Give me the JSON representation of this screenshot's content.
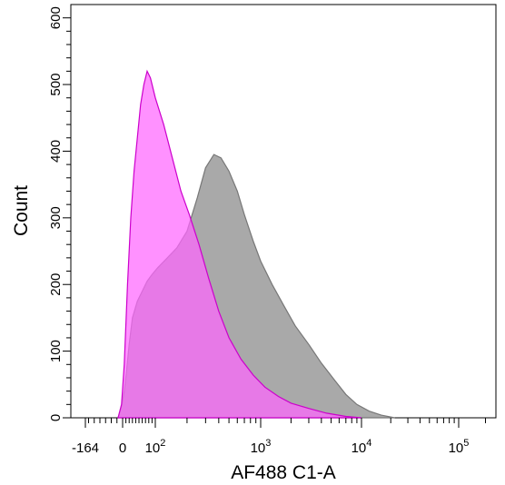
{
  "chart_data": {
    "type": "area",
    "title": "",
    "xlabel": "AF488 C1-A",
    "ylabel": "Count",
    "xscale": "biexponential",
    "xlim": [
      -164,
      262144
    ],
    "ylim": [
      0,
      620
    ],
    "x_ticks": [
      {
        "value": -164,
        "label": "-164"
      },
      {
        "value": 0,
        "label": "0"
      },
      {
        "value": 100,
        "base": "10",
        "exp": "2"
      },
      {
        "value": 1000,
        "base": "10",
        "exp": "3"
      },
      {
        "value": 10000,
        "base": "10",
        "exp": "4"
      },
      {
        "value": 100000,
        "base": "10",
        "exp": "5"
      }
    ],
    "y_ticks": [
      0,
      100,
      200,
      300,
      400,
      500,
      600
    ],
    "grid": false,
    "series": [
      {
        "color": "#a9a9a9",
        "outline": "#777777",
        "points": [
          [
            -20,
            0
          ],
          [
            -5,
            18
          ],
          [
            5,
            40
          ],
          [
            12,
            70
          ],
          [
            20,
            110
          ],
          [
            30,
            150
          ],
          [
            45,
            175
          ],
          [
            60,
            190
          ],
          [
            75,
            205
          ],
          [
            90,
            215
          ],
          [
            105,
            225
          ],
          [
            130,
            240
          ],
          [
            160,
            255
          ],
          [
            200,
            280
          ],
          [
            250,
            330
          ],
          [
            300,
            375
          ],
          [
            360,
            395
          ],
          [
            420,
            390
          ],
          [
            500,
            370
          ],
          [
            600,
            340
          ],
          [
            700,
            305
          ],
          [
            850,
            265
          ],
          [
            1000,
            235
          ],
          [
            1300,
            200
          ],
          [
            1700,
            168
          ],
          [
            2200,
            138
          ],
          [
            3000,
            110
          ],
          [
            4000,
            82
          ],
          [
            5500,
            55
          ],
          [
            7000,
            35
          ],
          [
            9000,
            20
          ],
          [
            12000,
            10
          ],
          [
            16000,
            4
          ],
          [
            22000,
            0
          ]
        ]
      },
      {
        "color": "#ff66ff",
        "outline": "#cc00cc",
        "points": [
          [
            -20,
            0
          ],
          [
            -5,
            20
          ],
          [
            5,
            80
          ],
          [
            15,
            200
          ],
          [
            25,
            300
          ],
          [
            35,
            370
          ],
          [
            45,
            420
          ],
          [
            55,
            470
          ],
          [
            65,
            500
          ],
          [
            75,
            520
          ],
          [
            85,
            510
          ],
          [
            100,
            480
          ],
          [
            120,
            440
          ],
          [
            145,
            390
          ],
          [
            175,
            340
          ],
          [
            210,
            305
          ],
          [
            260,
            260
          ],
          [
            320,
            210
          ],
          [
            400,
            160
          ],
          [
            500,
            120
          ],
          [
            650,
            88
          ],
          [
            850,
            64
          ],
          [
            1100,
            46
          ],
          [
            1500,
            32
          ],
          [
            2000,
            22
          ],
          [
            3000,
            14
          ],
          [
            4500,
            7
          ],
          [
            7000,
            2
          ],
          [
            10000,
            0
          ]
        ]
      }
    ]
  }
}
